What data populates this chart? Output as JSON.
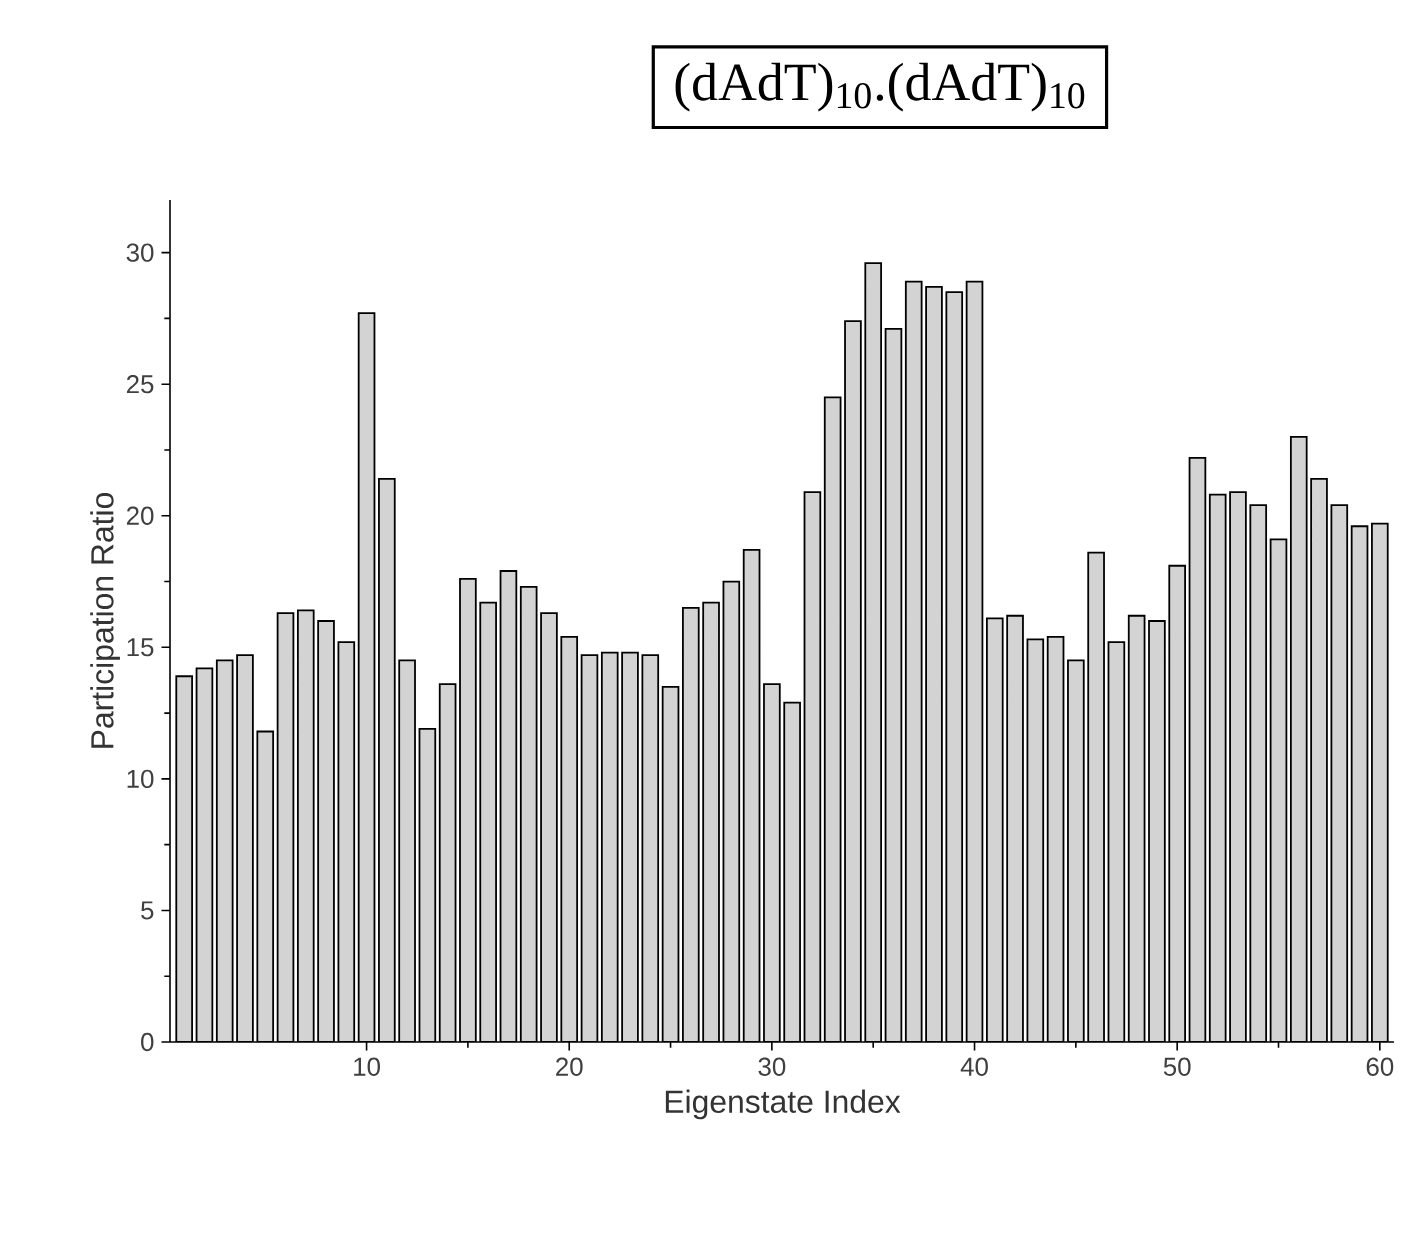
{
  "chart_data": {
    "type": "bar",
    "title": "(dAdT)$_{10}$.(dAdT)$_{10}$",
    "xlabel": "Eigenstate Index",
    "ylabel": "Participation Ratio",
    "x": [
      1,
      2,
      3,
      4,
      5,
      6,
      7,
      8,
      9,
      10,
      11,
      12,
      13,
      14,
      15,
      16,
      17,
      18,
      19,
      20,
      21,
      22,
      23,
      24,
      25,
      26,
      27,
      28,
      29,
      30,
      31,
      32,
      33,
      34,
      35,
      36,
      37,
      38,
      39,
      40,
      41,
      42,
      43,
      44,
      45,
      46,
      47,
      48,
      49,
      50,
      51,
      52,
      53,
      54,
      55,
      56,
      57,
      58,
      59,
      60
    ],
    "values": [
      13.9,
      14.2,
      14.5,
      14.7,
      11.8,
      16.3,
      16.4,
      16.0,
      15.2,
      27.7,
      21.4,
      14.5,
      11.9,
      13.6,
      17.6,
      16.7,
      17.9,
      17.3,
      16.3,
      15.4,
      14.7,
      14.8,
      14.8,
      14.7,
      13.5,
      16.5,
      16.7,
      17.5,
      18.7,
      13.6,
      12.9,
      20.9,
      24.5,
      27.4,
      29.6,
      27.1,
      28.9,
      28.7,
      28.5,
      28.9,
      16.1,
      16.2,
      15.3,
      15.4,
      14.5,
      18.6,
      15.2,
      16.2,
      16.0,
      18.1,
      22.2,
      20.8,
      20.9,
      20.4,
      19.1,
      23.0,
      21.4,
      20.4,
      19.6,
      19.7
    ],
    "color": "#d3d3d3",
    "xlim": [
      0.3,
      60.7
    ],
    "ylim": [
      0,
      32
    ],
    "xticks": [
      10,
      20,
      30,
      40,
      50,
      60
    ],
    "yticks": [
      0,
      5,
      10,
      15,
      20,
      25,
      30
    ]
  }
}
